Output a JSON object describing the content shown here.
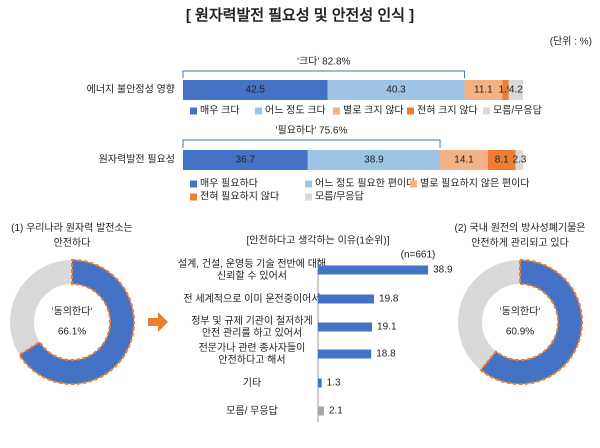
{
  "title": "[ 원자력발전 필요성 및 안전성 인식 ]",
  "unit": "(단위 : %)",
  "chart_data": [
    {
      "type": "stacked_bar",
      "colors": [
        "#4472c4",
        "#9dc3e6",
        "#f4b183",
        "#ed7d31",
        "#d9d9d9"
      ],
      "rows": [
        {
          "category": "에너지 불안정성 영향",
          "annotation": "'크다' 82.8%",
          "legend": [
            "매우 크다",
            "어느 정도 크다",
            "별로 크지 않다",
            "전혀 크지 않다",
            "모름/무응답"
          ],
          "values": [
            42.5,
            40.3,
            11.1,
            1.9,
            4.2
          ]
        },
        {
          "category": "원자력발전 필요성",
          "annotation": "'필요하다' 75.6%",
          "legend": [
            "매우 필요하다",
            "어느 정도 필요한 편이다",
            "별로 필요하지 않은 편이다",
            "전혀 필요하지 않다",
            "모름/무응답"
          ],
          "values": [
            36.7,
            38.9,
            14.1,
            8.1,
            2.3
          ]
        }
      ]
    },
    {
      "type": "donut",
      "title": [
        "(1) 우리나라 원자력 발전소는",
        "안전하다"
      ],
      "center_label": "'동의한다'",
      "values": [
        66.1
      ],
      "value_labels": [
        "66.1%"
      ],
      "color": "#4472c4",
      "rest_color": "#d9d9d9"
    },
    {
      "type": "bar",
      "title": "[안전하다고 생각하는 이유(1순위)]",
      "note": "(n=661)",
      "categories": [
        [
          "설계, 건설, 운영등 기술 전반에 대해",
          "신뢰할 수 있어서"
        ],
        [
          "전 세계적으로 이미 운전중이어서"
        ],
        [
          "정부 및 규제 기관이 철저하게",
          "안전 관리를 하고 있어서"
        ],
        [
          "전문가나 관련 종사자들이",
          "안전하다고 해서"
        ],
        [
          "기타"
        ],
        [
          "모름/ 무응답"
        ]
      ],
      "values": [
        38.9,
        19.8,
        19.1,
        18.8,
        1.3,
        2.1
      ],
      "colors": [
        "#4472c4",
        "#4472c4",
        "#4472c4",
        "#4472c4",
        "#4472c4",
        "#a6a6a6"
      ]
    },
    {
      "type": "donut",
      "title": [
        "(2) 국내 원전의 방사성폐기물은",
        "안전하게 관리되고 있다"
      ],
      "center_label": "'동의한다'",
      "values": [
        60.9
      ],
      "value_labels": [
        "60.9%"
      ],
      "color": "#4472c4",
      "rest_color": "#d9d9d9"
    }
  ]
}
